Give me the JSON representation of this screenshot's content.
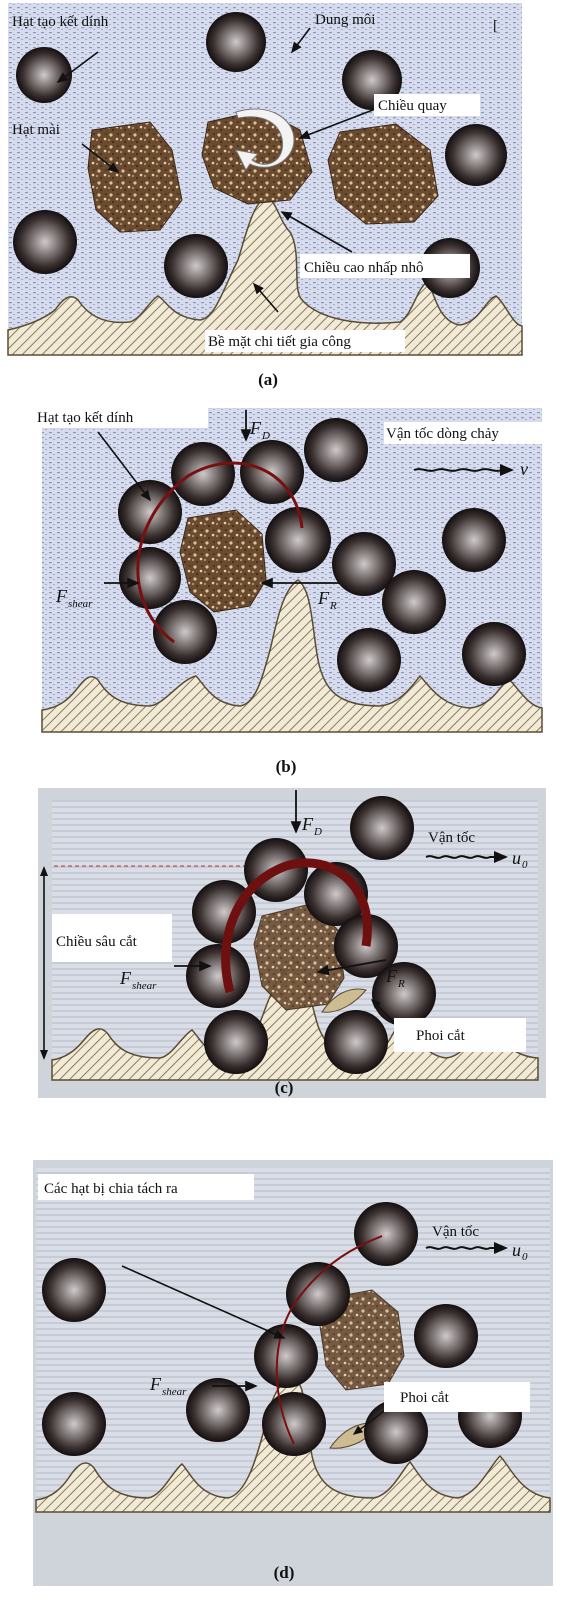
{
  "panels": [
    {
      "caption": "(a)",
      "labels": {
        "binder": "Hạt tạo kết dính",
        "solvent": "Dung môi",
        "abrasive": "Hạt mài",
        "rotation": "Chiều quay",
        "roughness": "Chiều cao nhấp nhô",
        "surface": "Bề mặt chi tiết gia công",
        "mark": "["
      }
    },
    {
      "caption": "(b)",
      "labels": {
        "binder": "Hạt tạo kết dính",
        "flow": "Vận tốc dòng chảy",
        "v": "v",
        "fd": "F",
        "fd_sub": "D",
        "fshear": "F",
        "fshear_sub": "shear",
        "fr": "F",
        "fr_sub": "R"
      }
    },
    {
      "caption": "(c)",
      "labels": {
        "depth": "Chiều sâu cắt",
        "velocity": "Vận tốc",
        "u0": "u",
        "u0_sub": "0",
        "fd": "F",
        "fd_sub": "D",
        "fshear": "F",
        "fshear_sub": "shear",
        "fr": "F",
        "fr_sub": "R",
        "chip": "Phoi cắt"
      }
    },
    {
      "caption": "(d)",
      "labels": {
        "separated": "Các hạt bị chia tách ra",
        "velocity": "Vận tốc",
        "u0": "u",
        "u0_sub": "0",
        "fshear": "F",
        "fshear_sub": "shear",
        "chip": "Phoi cắt"
      }
    }
  ],
  "colors": {
    "fluid": "#d3dae8",
    "fluid_dots": "#8c97b5",
    "sphere_dark": "#1c1616",
    "sphere_light": "#b9b4b4",
    "abrasive": "#6f4f33",
    "surface_hatch": "#8a7a5c",
    "arc": "#7a0f0f"
  }
}
